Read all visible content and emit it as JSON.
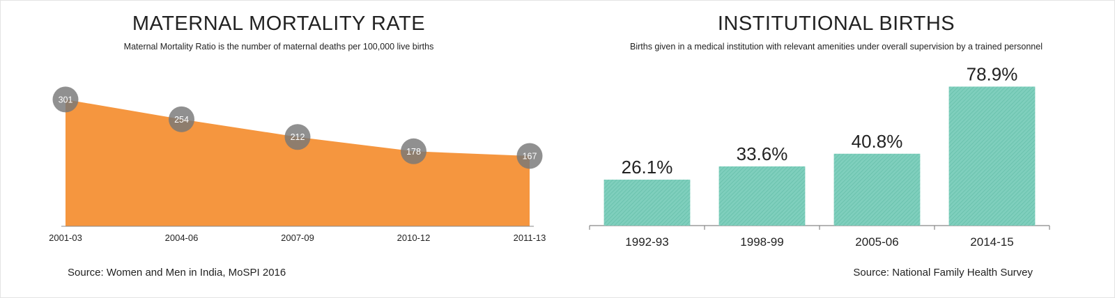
{
  "left_chart": {
    "title": "MATERNAL MORTALITY RATE",
    "subtitle": "Maternal Mortality Ratio is the number of maternal deaths per 100,000 live births",
    "source": "Source: Women and Men in India, MoSPI 2016"
  },
  "right_chart": {
    "title": "INSTITUTIONAL BIRTHS",
    "subtitle": "Births given in a medical institution with relevant amenities under overall supervision by a trained personnel",
    "source": "Source: National Family Health Survey"
  },
  "colors": {
    "area_fill": "#f5963f",
    "marker_fill": "#777777",
    "bar_fill": "#7fcfbd",
    "bar_hatch": "#66bfaa",
    "axis": "#888888"
  },
  "chart_data": [
    {
      "type": "area",
      "title": "MATERNAL MORTALITY RATE",
      "categories": [
        "2001-03",
        "2004-06",
        "2007-09",
        "2010-12",
        "2011-13"
      ],
      "values": [
        301,
        254,
        212,
        178,
        167
      ],
      "value_labels": [
        "301",
        "254",
        "212",
        "178",
        "167"
      ],
      "ylim": [
        0,
        400
      ],
      "grid": false
    },
    {
      "type": "bar",
      "title": "INSTITUTIONAL BIRTHS",
      "categories": [
        "1992-93",
        "1998-99",
        "2005-06",
        "2014-15"
      ],
      "values": [
        26.1,
        33.6,
        40.8,
        78.9
      ],
      "value_labels": [
        "26.1%",
        "33.6%",
        "40.8%",
        "78.9%"
      ],
      "ylim": [
        0,
        100
      ],
      "grid": false
    }
  ]
}
